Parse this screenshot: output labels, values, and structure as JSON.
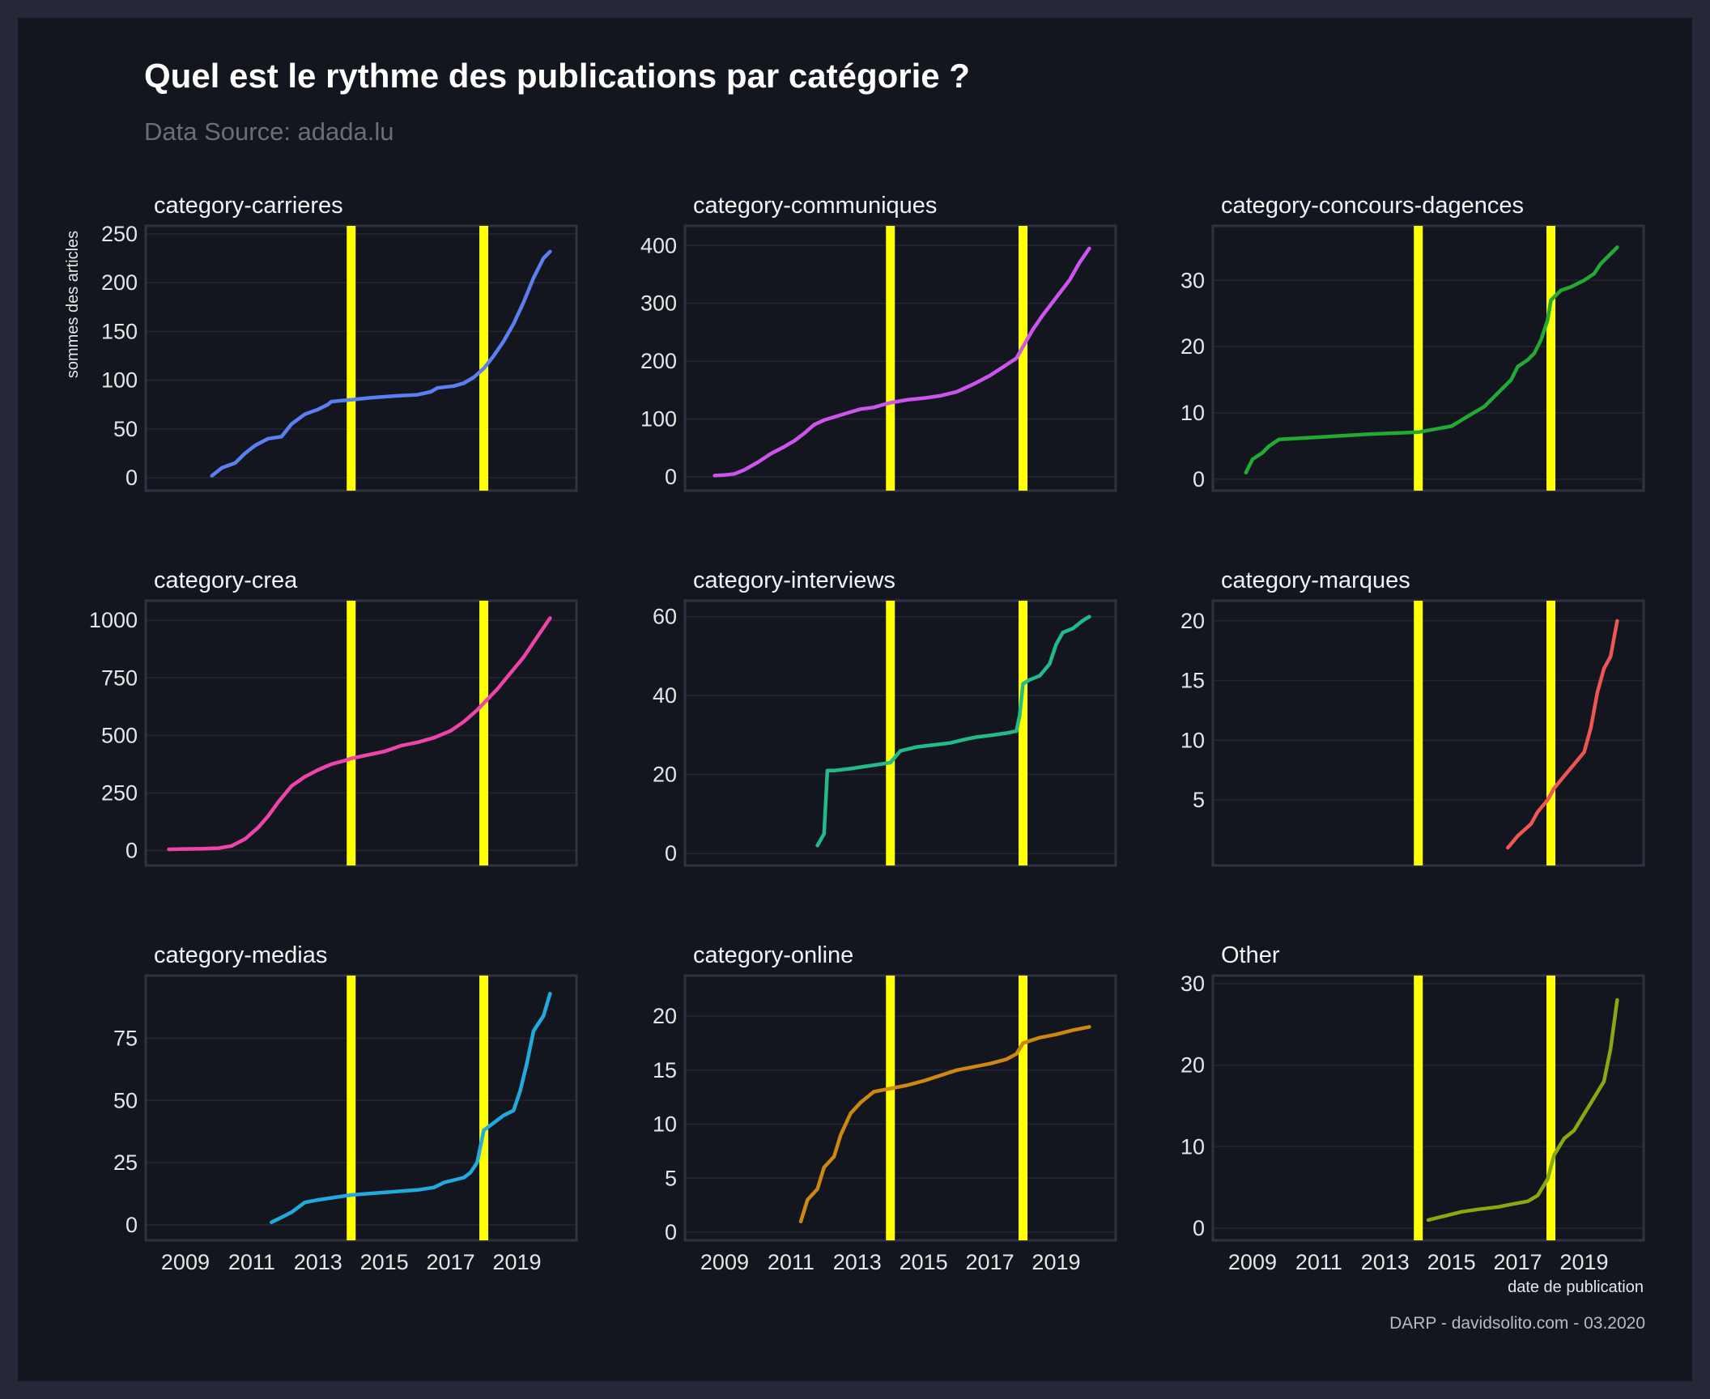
{
  "title": "Quel est le rythme des publications par catégorie ?",
  "subtitle": "Data Source: adada.lu",
  "caption": "DARP - davidsolito.com - 03.2020",
  "colors": {
    "background": "#14161f",
    "outer": "#262838",
    "frame": "#30323f",
    "grid": "#24262f",
    "vline": "#ffff00"
  },
  "chart_data": {
    "type": "line",
    "layout": "facet-grid-3x3",
    "xlabel": "date de publication",
    "ylabel": "sommes des articles",
    "x_ticks": [
      2009,
      2011,
      2013,
      2015,
      2017,
      2019
    ],
    "x_range": [
      2008,
      2020.6
    ],
    "vertical_lines": [
      2014.0,
      2018.0
    ],
    "grid": true,
    "facets": [
      {
        "title": "category-carrieres",
        "color": "#5b7ff0",
        "ylim": [
          -5,
          250
        ],
        "y_ticks": [
          0,
          50,
          100,
          150,
          200,
          250
        ],
        "x": [
          2009.8,
          2010.1,
          2010.5,
          2010.8,
          2011.1,
          2011.5,
          2011.9,
          2012.2,
          2012.6,
          2013.0,
          2013.3,
          2013.4,
          2013.7,
          2014.0,
          2014.6,
          2015.4,
          2016.0,
          2016.4,
          2016.6,
          2017.1,
          2017.4,
          2017.7,
          2018.0,
          2018.3,
          2018.6,
          2018.9,
          2019.2,
          2019.5,
          2019.8,
          2020.0
        ],
        "y": [
          2,
          10,
          15,
          25,
          33,
          40,
          42,
          55,
          65,
          70,
          75,
          78,
          79,
          80,
          82,
          84,
          85,
          88,
          92,
          94,
          97,
          103,
          112,
          125,
          140,
          158,
          180,
          205,
          225,
          232
        ]
      },
      {
        "title": "category-communiques",
        "color": "#cc55ee",
        "ylim": [
          -10,
          420
        ],
        "y_ticks": [
          0,
          100,
          200,
          300,
          400
        ],
        "x": [
          2008.7,
          2009.0,
          2009.3,
          2009.6,
          2010.0,
          2010.4,
          2010.8,
          2011.1,
          2011.4,
          2011.7,
          2012.0,
          2012.4,
          2012.8,
          2013.1,
          2013.5,
          2013.8,
          2014.0,
          2014.5,
          2015.0,
          2015.5,
          2016.0,
          2016.5,
          2017.0,
          2017.4,
          2017.8,
          2018.0,
          2018.3,
          2018.6,
          2019.0,
          2019.4,
          2019.7,
          2020.0
        ],
        "y": [
          2,
          3,
          5,
          12,
          25,
          40,
          52,
          62,
          75,
          90,
          98,
          105,
          112,
          117,
          120,
          125,
          128,
          133,
          136,
          140,
          147,
          160,
          175,
          190,
          205,
          225,
          255,
          280,
          310,
          340,
          370,
          395
        ]
      },
      {
        "title": "category-concours-dagences",
        "color": "#22aa33",
        "ylim": [
          -0.5,
          37
        ],
        "y_ticks": [
          0,
          10,
          20,
          30
        ],
        "x": [
          2008.8,
          2009.0,
          2009.3,
          2009.5,
          2009.8,
          2010.5,
          2011.5,
          2012.5,
          2013.5,
          2014.0,
          2015.0,
          2015.5,
          2016.0,
          2016.4,
          2016.8,
          2017.0,
          2017.3,
          2017.5,
          2017.7,
          2017.9,
          2018.0,
          2018.3,
          2018.6,
          2019.0,
          2019.3,
          2019.5,
          2019.8,
          2020.0
        ],
        "y": [
          1,
          3,
          4,
          5,
          6,
          6.2,
          6.5,
          6.8,
          7.0,
          7.1,
          8.0,
          9.5,
          11,
          13,
          15,
          17,
          18,
          19,
          21,
          24,
          27,
          28.5,
          29,
          30,
          31,
          32.5,
          34,
          35
        ]
      },
      {
        "title": "category-crea",
        "color": "#ee44aa",
        "ylim": [
          -30,
          1050
        ],
        "y_ticks": [
          0,
          250,
          500,
          750,
          1000
        ],
        "x": [
          2008.5,
          2008.8,
          2009.2,
          2009.6,
          2010.0,
          2010.4,
          2010.8,
          2011.2,
          2011.5,
          2011.8,
          2012.2,
          2012.6,
          2013.0,
          2013.4,
          2013.8,
          2014.0,
          2014.5,
          2015.0,
          2015.5,
          2016.0,
          2016.5,
          2017.0,
          2017.4,
          2017.8,
          2018.0,
          2018.4,
          2018.8,
          2019.2,
          2019.6,
          2020.0
        ],
        "y": [
          5,
          6,
          7,
          8,
          10,
          20,
          50,
          100,
          150,
          210,
          280,
          320,
          350,
          375,
          390,
          400,
          415,
          430,
          455,
          470,
          490,
          520,
          560,
          610,
          640,
          700,
          770,
          840,
          925,
          1010
        ]
      },
      {
        "title": "category-interviews",
        "color": "#22bb88",
        "ylim": [
          -1,
          62
        ],
        "y_ticks": [
          0,
          20,
          40,
          60
        ],
        "x": [
          2011.8,
          2012.0,
          2012.1,
          2012.3,
          2012.8,
          2013.2,
          2013.6,
          2014.0,
          2014.3,
          2014.8,
          2015.3,
          2015.8,
          2016.3,
          2016.6,
          2017.1,
          2017.5,
          2017.8,
          2017.9,
          2018.0,
          2018.2,
          2018.5,
          2018.8,
          2019.0,
          2019.2,
          2019.5,
          2019.8,
          2020.0
        ],
        "y": [
          2,
          5,
          21,
          21,
          21.5,
          22,
          22.5,
          23,
          26,
          27,
          27.5,
          28,
          29,
          29.5,
          30,
          30.5,
          31,
          35,
          43,
          44,
          45,
          48,
          53,
          56,
          57,
          59,
          60
        ]
      },
      {
        "title": "category-marques",
        "color": "#ee5555",
        "ylim": [
          0.2,
          21
        ],
        "y_ticks": [
          5,
          10,
          15,
          20
        ],
        "x": [
          2016.7,
          2017.0,
          2017.4,
          2017.6,
          2017.9,
          2018.1,
          2018.4,
          2018.7,
          2019.0,
          2019.2,
          2019.4,
          2019.6,
          2019.8,
          2020.0
        ],
        "y": [
          1,
          2,
          3,
          4,
          5,
          6,
          7,
          8,
          9,
          11,
          14,
          16,
          17,
          20
        ]
      },
      {
        "title": "category-medias",
        "color": "#22aadd",
        "ylim": [
          -3,
          97
        ],
        "y_ticks": [
          0,
          25,
          50,
          75
        ],
        "x": [
          2011.6,
          2011.9,
          2012.2,
          2012.6,
          2013.0,
          2013.5,
          2014.0,
          2014.5,
          2015.0,
          2015.5,
          2016.0,
          2016.5,
          2016.8,
          2017.1,
          2017.4,
          2017.6,
          2017.8,
          2018.0,
          2018.3,
          2018.6,
          2018.9,
          2019.1,
          2019.3,
          2019.5,
          2019.8,
          2020.0
        ],
        "y": [
          1,
          3,
          5,
          9,
          10,
          11,
          12,
          12.5,
          13,
          13.5,
          14,
          15,
          17,
          18,
          19,
          21,
          25,
          38,
          41,
          44,
          46,
          54,
          65,
          78,
          84,
          93
        ]
      },
      {
        "title": "category-online",
        "color": "#cc8811",
        "ylim": [
          0,
          23
        ],
        "y_ticks": [
          0,
          5,
          10,
          15,
          20
        ],
        "x": [
          2011.3,
          2011.5,
          2011.8,
          2012.0,
          2012.3,
          2012.5,
          2012.8,
          2013.1,
          2013.5,
          2014.0,
          2014.5,
          2015.0,
          2015.5,
          2016.0,
          2016.5,
          2017.0,
          2017.5,
          2017.8,
          2018.0,
          2018.5,
          2019.0,
          2019.5,
          2020.0
        ],
        "y": [
          1,
          3,
          4,
          6,
          7,
          9,
          11,
          12,
          13,
          13.3,
          13.6,
          14,
          14.5,
          15,
          15.3,
          15.6,
          16,
          16.5,
          17.5,
          18,
          18.3,
          18.7,
          19
        ]
      },
      {
        "title": "Other",
        "color": "#88aa11",
        "ylim": [
          -0.5,
          30
        ],
        "y_ticks": [
          0,
          10,
          20,
          30
        ],
        "x": [
          2014.3,
          2014.8,
          2015.3,
          2015.8,
          2016.4,
          2016.9,
          2017.3,
          2017.6,
          2017.9,
          2018.1,
          2018.4,
          2018.7,
          2019.0,
          2019.3,
          2019.6,
          2019.8,
          2020.0
        ],
        "y": [
          1,
          1.5,
          2,
          2.3,
          2.6,
          3,
          3.3,
          4,
          6,
          9,
          11,
          12,
          14,
          16,
          18,
          22,
          28
        ]
      }
    ]
  }
}
